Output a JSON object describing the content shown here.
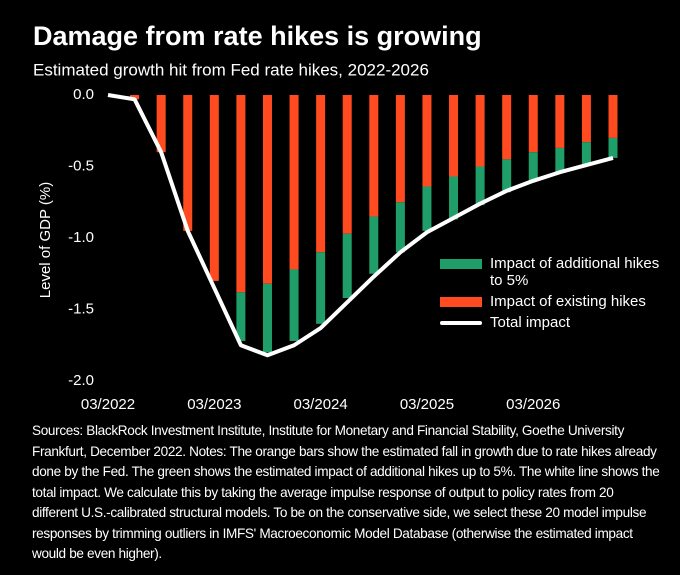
{
  "chart_data": {
    "type": "bar",
    "title": "Damage from rate hikes is growing",
    "subtitle": "Estimated growth hit from Fed rate hikes, 2022-2026",
    "y_label": "Level of GDP (%)",
    "categories": [
      "03/2022",
      null,
      null,
      null,
      "03/2023",
      null,
      null,
      null,
      "03/2024",
      null,
      null,
      null,
      "03/2025",
      null,
      null,
      null,
      "03/2026",
      null,
      null,
      null
    ],
    "series": [
      {
        "name": "Impact of additional hikes to 5%",
        "color": "#1f9e6a",
        "type": "bar",
        "values": [
          0,
          0,
          0,
          0,
          0,
          -0.34,
          -0.48,
          -0.5,
          -0.5,
          -0.45,
          -0.4,
          -0.35,
          -0.31,
          -0.3,
          -0.27,
          -0.23,
          -0.2,
          -0.17,
          -0.16,
          -0.14
        ]
      },
      {
        "name": "Impact of existing hikes",
        "color": "#ff4b1f",
        "type": "bar",
        "values": [
          0,
          -0.03,
          -0.4,
          -0.95,
          -1.3,
          -1.38,
          -1.32,
          -1.22,
          -1.1,
          -0.97,
          -0.85,
          -0.75,
          -0.64,
          -0.57,
          -0.5,
          -0.45,
          -0.4,
          -0.37,
          -0.33,
          -0.3
        ]
      },
      {
        "name": "Total impact",
        "color": "#ffffff",
        "type": "line",
        "values": [
          0,
          -0.03,
          -0.4,
          -0.95,
          -1.35,
          -1.75,
          -1.82,
          -1.75,
          -1.63,
          -1.45,
          -1.27,
          -1.1,
          -0.96,
          -0.86,
          -0.76,
          -0.67,
          -0.6,
          -0.54,
          -0.49,
          -0.44
        ]
      }
    ],
    "ylim": [
      -2.0,
      0
    ],
    "yticks": [
      {
        "value": 0,
        "label": "0.0"
      },
      -0.5,
      {
        "value": -1.0,
        "label": "-1.0"
      },
      -1.5,
      {
        "value": -2.0,
        "label": "-2.0"
      }
    ],
    "legend": "right",
    "note": "Sources: BlackRock Investment Institute, Institute for Monetary and Financial Stability, Goethe University Frankfurt, December 2022. Notes: The orange bars show the estimated fall in growth due to rate hikes already done by the Fed. The green shows the estimated impact of additional hikes up to 5%. The white line shows the total impact. We calculate this by taking the average impulse response of output to policy rates from 20 different U.S.-calibrated structural models. To be on the conservative side, we select these 20 model impulse responses by trimming outliers in IMFS' Macroeconomic Model Database (otherwise the estimated impact would be even higher)."
  }
}
